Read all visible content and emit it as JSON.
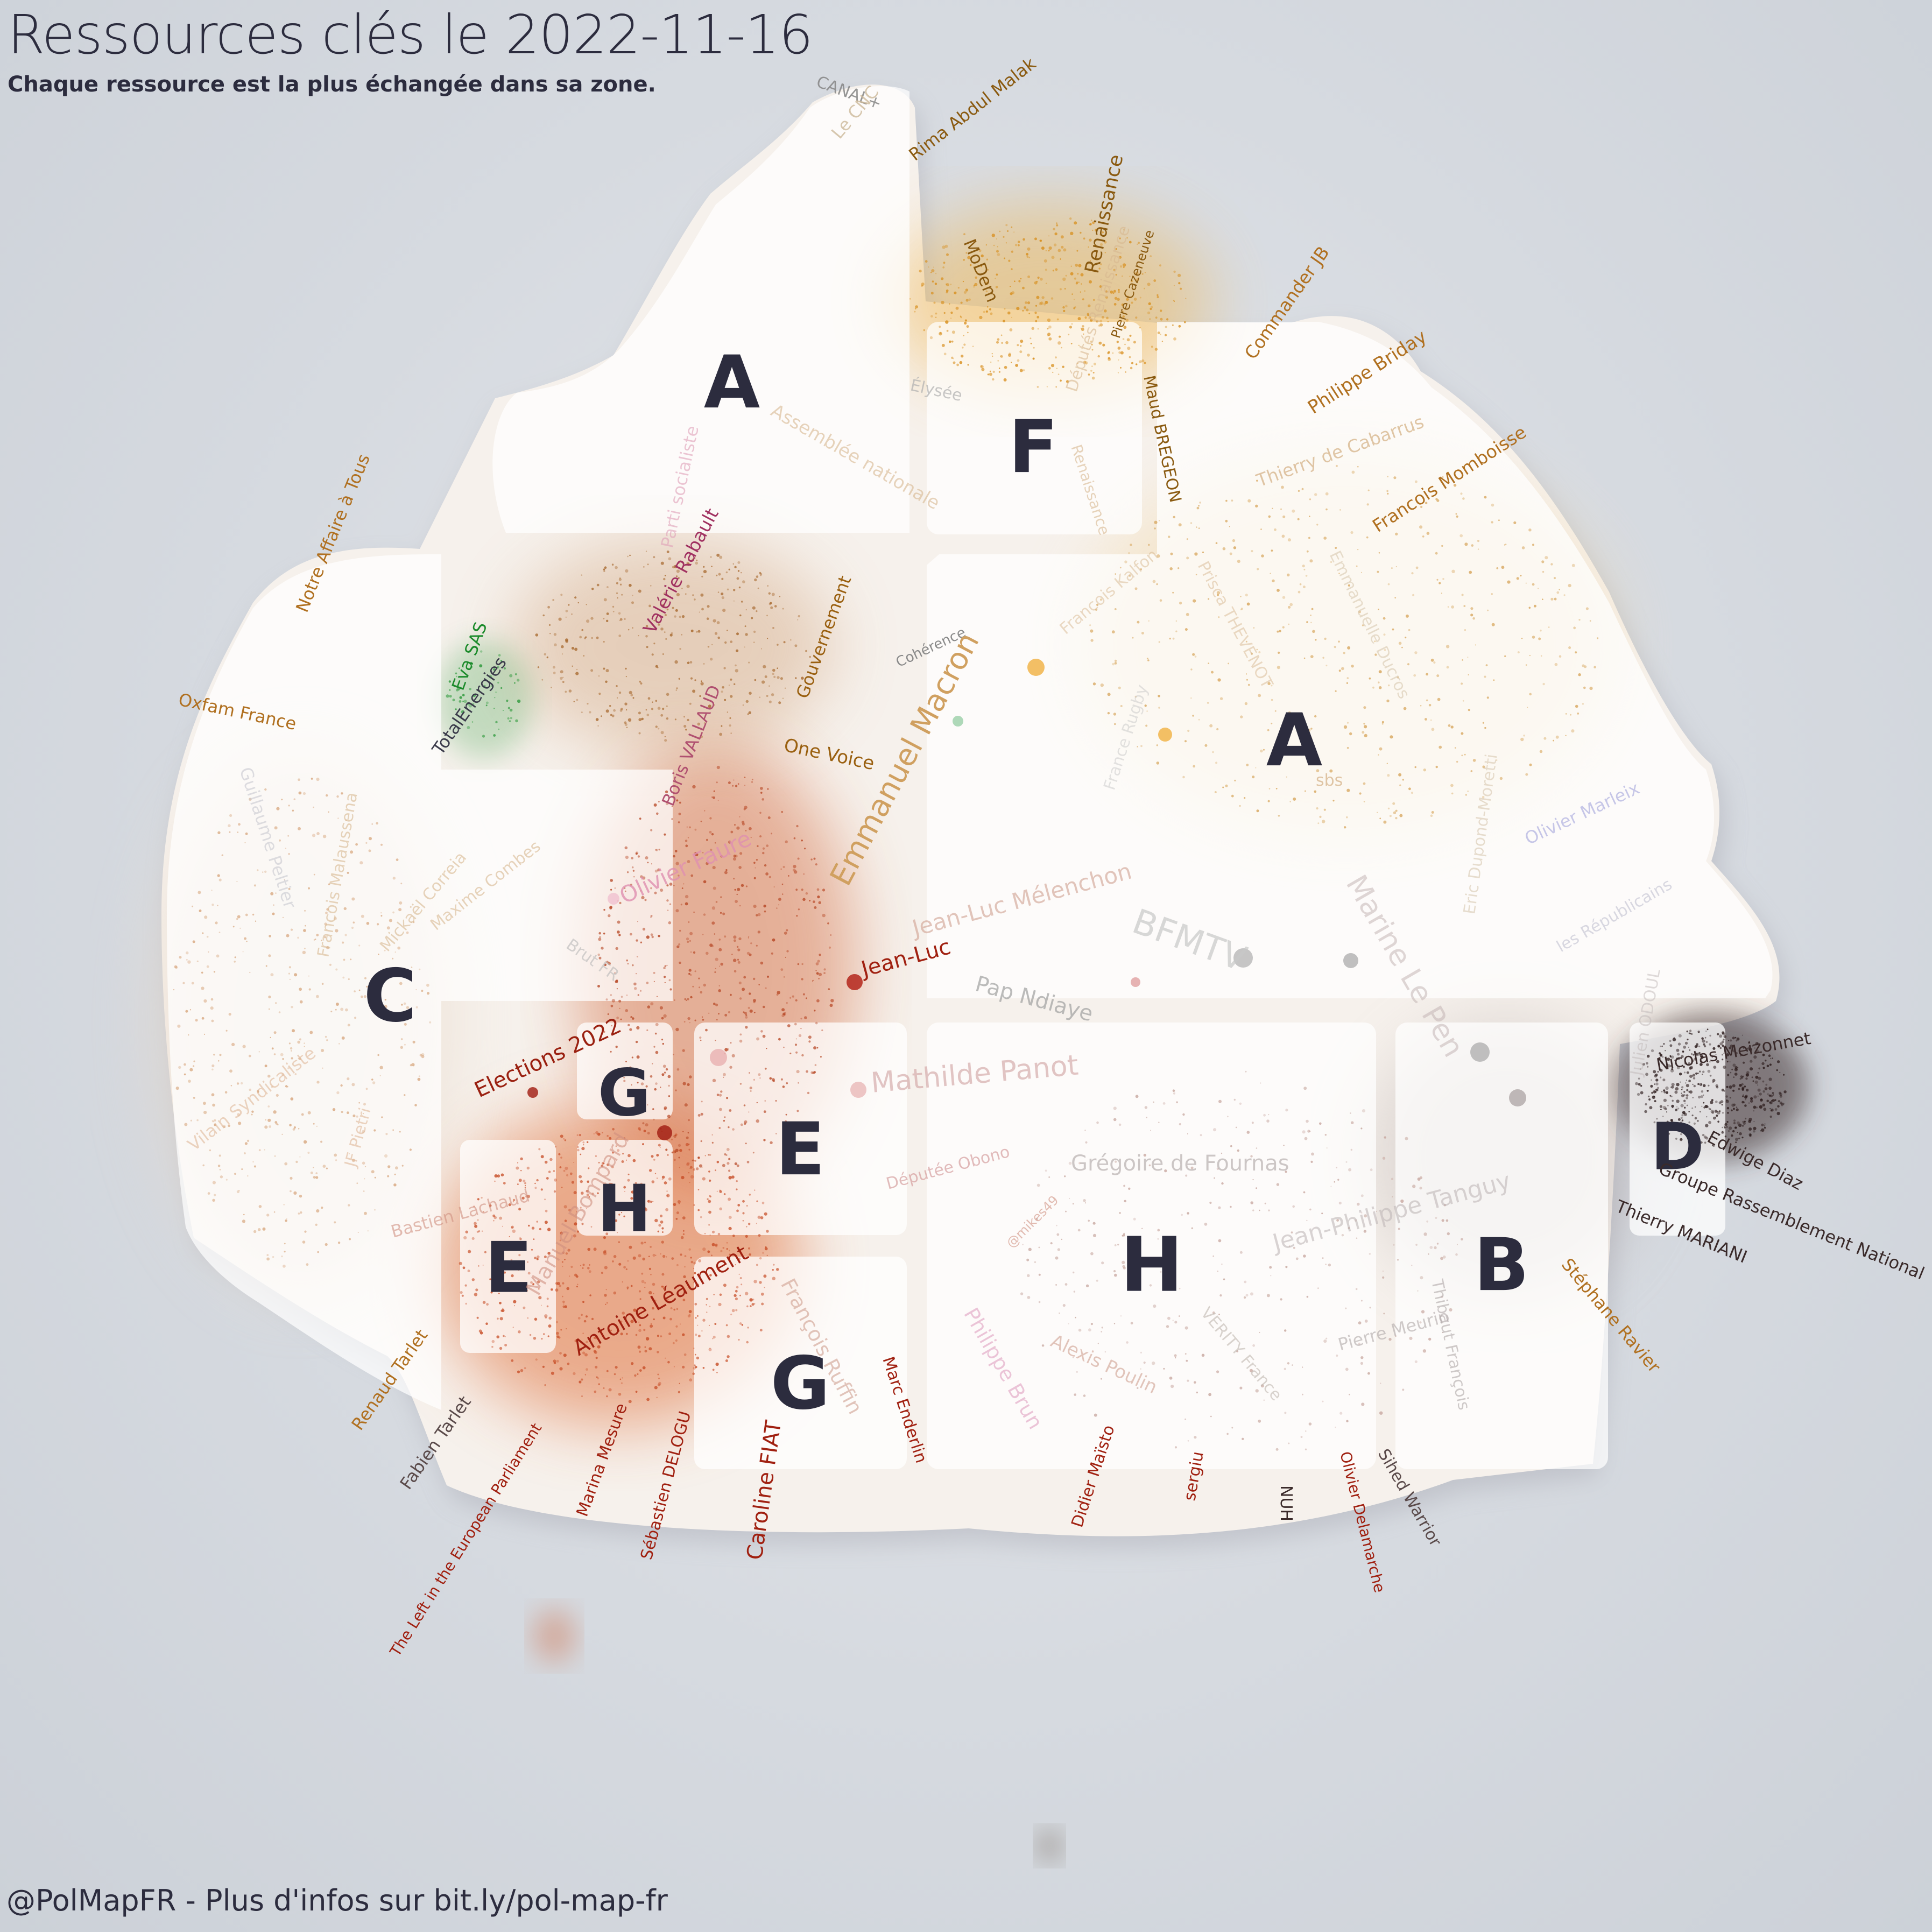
{
  "header": {
    "title": "Ressources clés le 2022-11-16",
    "subtitle": "Chaque ressource est la plus échangée dans sa zone."
  },
  "footer": {
    "credit": "@PolMapFR - Plus d'infos sur bit.ly/pol-map-fr"
  },
  "colors": {
    "background": "#d6dae0",
    "zone_fill": "#ffffff",
    "zone_letter": "#2c2c3e",
    "left_cluster": "#e0703a",
    "right_cluster": "#f0b040",
    "far_right_cluster": "#3a2a2a",
    "ecology_cluster": "#2e9a3c"
  },
  "zones": [
    {
      "letter": "A"
    },
    {
      "letter": "F"
    },
    {
      "letter": "A"
    },
    {
      "letter": "C"
    },
    {
      "letter": "G"
    },
    {
      "letter": "H"
    },
    {
      "letter": "E"
    },
    {
      "letter": "E"
    },
    {
      "letter": "G"
    },
    {
      "letter": "H"
    },
    {
      "letter": "B"
    },
    {
      "letter": "D"
    }
  ],
  "labels": [
    {
      "text": "CANAL+",
      "color": "#8a8a8a"
    },
    {
      "text": "Le CNC",
      "color": "#cdb99a"
    },
    {
      "text": "Rima Abdul Malak",
      "color": "#8a5a10"
    },
    {
      "text": "MoDem",
      "color": "#8a5a10"
    },
    {
      "text": "Renaissance",
      "color": "#8a5a10"
    },
    {
      "text": "Pierre Cazeneuve",
      "color": "#8a5a10"
    },
    {
      "text": "Commander JB",
      "color": "#b07020"
    },
    {
      "text": "Philippe Briday",
      "color": "#b07020"
    },
    {
      "text": "Thierry de Cabarrus",
      "color": "#d8b890"
    },
    {
      "text": "Francois Momboisse",
      "color": "#b07020"
    },
    {
      "text": "Élysée",
      "color": "#b0b0b0"
    },
    {
      "text": "Députés Renaissance",
      "color": "#d8b890"
    },
    {
      "text": "Maud BREGEON",
      "color": "#8a5a10"
    },
    {
      "text": "Renaissance",
      "color": "#d8b890"
    },
    {
      "text": "Assemblée nationale",
      "color": "#d8b890"
    },
    {
      "text": "Parti socialiste",
      "color": "#e0a0b8"
    },
    {
      "text": "Valérie Rabault",
      "color": "#a03060"
    },
    {
      "text": "Notre Affaire à Tous",
      "color": "#b07020"
    },
    {
      "text": "Oxfam France",
      "color": "#b07020"
    },
    {
      "text": "Eva SAS",
      "color": "#1a8a2a"
    },
    {
      "text": "TotalEnergies",
      "color": "#3a3a4a"
    },
    {
      "text": "Boris VALLAUD",
      "color": "#b05070"
    },
    {
      "text": "Gouvernement",
      "color": "#9a6010"
    },
    {
      "text": "Cohérence",
      "color": "#8a8a8a"
    },
    {
      "text": "One Voice",
      "color": "#9a6010"
    },
    {
      "text": "Francois Kalfon",
      "color": "#d8b890"
    },
    {
      "text": "Prisca THEVENOT",
      "color": "#d8b890"
    },
    {
      "text": "Emmanuelle Ducros",
      "color": "#d8c8b0"
    },
    {
      "text": "sbs",
      "color": "#d8b890"
    },
    {
      "text": "France Rugby",
      "color": "#c8c8c8"
    },
    {
      "text": "Emmanuel Macron",
      "color": "#d0a060"
    },
    {
      "text": "Eric Dupond-Moretti",
      "color": "#d8c8b0"
    },
    {
      "text": "Olivier Marleix",
      "color": "#b0b0e0"
    },
    {
      "text": "les Républicains",
      "color": "#c0c0d0"
    },
    {
      "text": "Guillaume Peltier",
      "color": "#c8c8d0"
    },
    {
      "text": "Francois Malaussena",
      "color": "#d8b890"
    },
    {
      "text": "Mickaël Correia",
      "color": "#d8b890"
    },
    {
      "text": "Maxime Combes",
      "color": "#d8b890"
    },
    {
      "text": "Olivier Faure",
      "color": "#e090b0"
    },
    {
      "text": "Brut FR",
      "color": "#b8b8b8"
    },
    {
      "text": "Jean-Luc Mélenchon",
      "color": "#d0a090"
    },
    {
      "text": "Jean-Luc",
      "color": "#a02010"
    },
    {
      "text": "BFMTV",
      "color": "#c8c8c8"
    },
    {
      "text": "Marine Le Pen",
      "color": "#c0b0b0"
    },
    {
      "text": "Pap Ndiaye",
      "color": "#a0a0a0"
    },
    {
      "text": "Julien ODOUL",
      "color": "#c0b8b8"
    },
    {
      "text": "Nicolas Meizonnet",
      "color": "#3a2a2a"
    },
    {
      "text": "Edwige Diaz",
      "color": "#3a2a2a"
    },
    {
      "text": "Groupe Rassemblement National",
      "color": "#3a2a2a"
    },
    {
      "text": "Thierry MARIANI",
      "color": "#3a2a2a"
    },
    {
      "text": "Stéphane Ravier",
      "color": "#b07020"
    },
    {
      "text": "Elections 2022",
      "color": "#9a2010"
    },
    {
      "text": "Vilain Syndicaliste",
      "color": "#e0b898"
    },
    {
      "text": "JF Pietri",
      "color": "#e0b898"
    },
    {
      "text": "Mathilde Panot",
      "color": "#d0a0a0"
    },
    {
      "text": "Députée Obono",
      "color": "#d09090"
    },
    {
      "text": "Grégoire de Fournas",
      "color": "#b8b0b0"
    },
    {
      "text": "Jean-Philippe Tanguy",
      "color": "#c0b8b8"
    },
    {
      "text": "@mikes49",
      "color": "#d09080"
    },
    {
      "text": "Bastien Lachaud",
      "color": "#d09080"
    },
    {
      "text": "Manuel Bompard",
      "color": "#d09080"
    },
    {
      "text": "Antoine Léaument",
      "color": "#a02010"
    },
    {
      "text": "François Ruffin",
      "color": "#d0a090"
    },
    {
      "text": "Marc Enderlin",
      "color": "#a02010"
    },
    {
      "text": "Philippe Brun",
      "color": "#e0a0c0"
    },
    {
      "text": "Alexis Poulin",
      "color": "#d0a090"
    },
    {
      "text": "VERITY France",
      "color": "#c0b8b0"
    },
    {
      "text": "Pierre Meurin",
      "color": "#b0a8a8"
    },
    {
      "text": "Thibaut François",
      "color": "#b0a8a8"
    },
    {
      "text": "Renaud Tarlet",
      "color": "#b07020"
    },
    {
      "text": "Fabien Tarlet",
      "color": "#5a4a4a"
    },
    {
      "text": "The Left in the European Parliament",
      "color": "#a02010"
    },
    {
      "text": "Marina Mesure",
      "color": "#a02010"
    },
    {
      "text": "Sébastien DELOGU",
      "color": "#a02010"
    },
    {
      "text": "Caroline FIAT",
      "color": "#a02010"
    },
    {
      "text": "Didier Maïsto",
      "color": "#a02010"
    },
    {
      "text": "sergiu",
      "color": "#a02010"
    },
    {
      "text": "NUH",
      "color": "#3a2a2a"
    },
    {
      "text": "Olivier Delamarche",
      "color": "#a02010"
    },
    {
      "text": "Sihed Warrior",
      "color": "#5a4a4a"
    }
  ]
}
